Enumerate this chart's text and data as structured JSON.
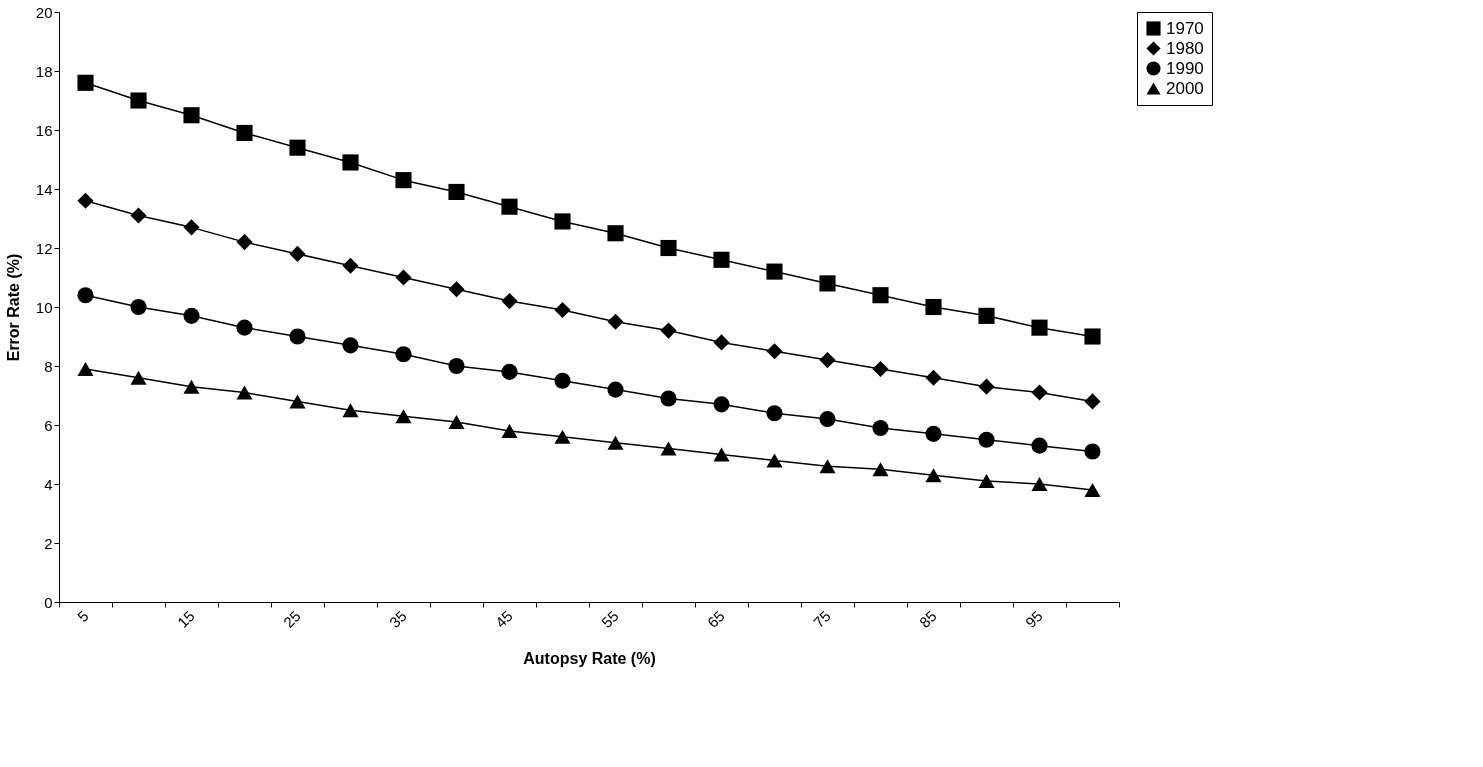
{
  "chart_data": {
    "type": "line",
    "xlabel": "Autopsy Rate (%)",
    "ylabel": "Error Rate (%)",
    "categories": [
      "5",
      null,
      "15",
      null,
      "25",
      null,
      "35",
      null,
      "45",
      null,
      "55",
      null,
      "65",
      null,
      "75",
      null,
      "85",
      null,
      "95",
      null
    ],
    "ylim": [
      0,
      20
    ],
    "yticks": [
      0,
      2,
      4,
      6,
      8,
      10,
      12,
      14,
      16,
      18,
      20
    ],
    "grid": false,
    "legend": "right",
    "series": [
      {
        "name": "1970",
        "color": "#000000",
        "marker": "square",
        "values": [
          17.6,
          17.0,
          16.5,
          15.9,
          15.4,
          14.9,
          14.3,
          13.9,
          13.4,
          12.9,
          12.5,
          12.0,
          11.6,
          11.2,
          10.8,
          10.4,
          10.0,
          9.7,
          9.3,
          9.0
        ]
      },
      {
        "name": "1980",
        "color": "#000000",
        "marker": "diamond",
        "values": [
          13.6,
          13.1,
          12.7,
          12.2,
          11.8,
          11.4,
          11.0,
          10.6,
          10.2,
          9.9,
          9.5,
          9.2,
          8.8,
          8.5,
          8.2,
          7.9,
          7.6,
          7.3,
          7.1,
          6.8
        ]
      },
      {
        "name": "1990",
        "color": "#000000",
        "marker": "circle",
        "values": [
          10.4,
          10.0,
          9.7,
          9.3,
          9.0,
          8.7,
          8.4,
          8.0,
          7.8,
          7.5,
          7.2,
          6.9,
          6.7,
          6.4,
          6.2,
          5.9,
          5.7,
          5.5,
          5.3,
          5.1
        ]
      },
      {
        "name": "2000",
        "color": "#000000",
        "marker": "triangle",
        "values": [
          7.9,
          7.6,
          7.3,
          7.1,
          6.8,
          6.5,
          6.3,
          6.1,
          5.8,
          5.6,
          5.4,
          5.2,
          5.0,
          4.8,
          4.6,
          4.5,
          4.3,
          4.1,
          4.0,
          3.8
        ]
      }
    ]
  }
}
